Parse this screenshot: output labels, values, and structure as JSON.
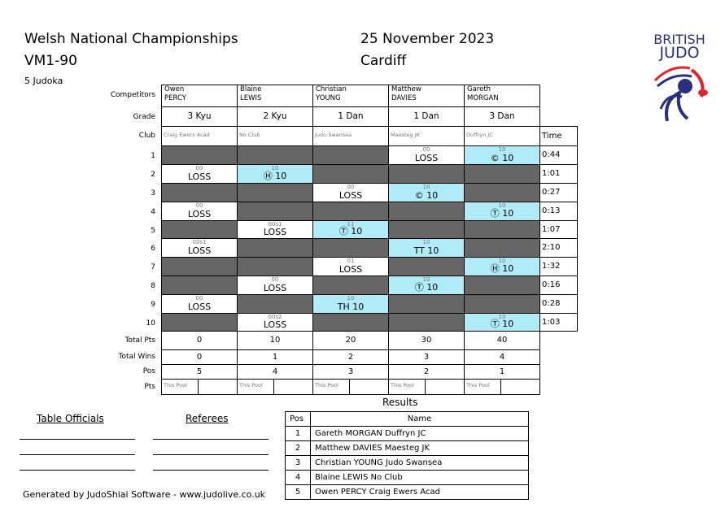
{
  "header": {
    "title": "Welsh National Championships",
    "category": "VM1-90",
    "count": "5 Judoka",
    "date": "25 November 2023",
    "location": "Cardiff",
    "logo_text": [
      "BRITISH",
      "JUDO"
    ]
  },
  "labels": {
    "competitors": "Competitors",
    "grade": "Grade",
    "club": "Club",
    "time": "Time",
    "total_pts": "Total Pts",
    "total_wins": "Total Wins",
    "pos": "Pos",
    "pts": "Pts",
    "this_pool": "This Pool"
  },
  "competitors": [
    {
      "first": "Owen",
      "last": "PERCY",
      "grade": "3 Kyu",
      "club": "Craig Ewers Acad",
      "total_pts": "0",
      "total_wins": "0",
      "pos": "5"
    },
    {
      "first": "Blaine",
      "last": "LEWIS",
      "grade": "2 Kyu",
      "club": "No Club",
      "total_pts": "10",
      "total_wins": "1",
      "pos": "4"
    },
    {
      "first": "Christian",
      "last": "YOUNG",
      "grade": "1 Dan",
      "club": "Judo Swansea",
      "total_pts": "20",
      "total_wins": "2",
      "pos": "3"
    },
    {
      "first": "Matthew",
      "last": "DAVIES",
      "grade": "1 Dan",
      "club": "Maesteg JK",
      "total_pts": "30",
      "total_wins": "3",
      "pos": "2"
    },
    {
      "first": "Gareth",
      "last": "MORGAN",
      "grade": "3 Dan",
      "club": "Duffryn JC",
      "total_pts": "40",
      "total_wins": "4",
      "pos": "1"
    }
  ],
  "bouts": [
    {
      "num": "1",
      "loser": 3,
      "loser_score": "00",
      "loser_text": "LOSS",
      "winner": 4,
      "winner_score": "10",
      "winner_text": "© 10",
      "time": "0:44"
    },
    {
      "num": "2",
      "loser": 0,
      "loser_score": "00",
      "loser_text": "LOSS",
      "winner": 1,
      "winner_score": "10",
      "winner_text": "Ⓗ 10",
      "time": "1:01"
    },
    {
      "num": "3",
      "loser": 2,
      "loser_score": "00",
      "loser_text": "LOSS",
      "winner": 3,
      "winner_score": "10",
      "winner_text": "© 10",
      "time": "0:27"
    },
    {
      "num": "4",
      "loser": 0,
      "loser_score": "00",
      "loser_text": "LOSS",
      "winner": 4,
      "winner_score": "10",
      "winner_text": "Ⓣ 10",
      "time": "0:13"
    },
    {
      "num": "5",
      "loser": 1,
      "loser_score": "00s1",
      "loser_text": "LOSS",
      "winner": 2,
      "winner_score": "11",
      "winner_text": "Ⓣ 10",
      "time": "1:07"
    },
    {
      "num": "6",
      "loser": 0,
      "loser_score": "00s1",
      "loser_text": "LOSS",
      "winner": 3,
      "winner_score": "10",
      "winner_text": "TT 10",
      "time": "2:10"
    },
    {
      "num": "7",
      "loser": 2,
      "loser_score": "01",
      "loser_text": "LOSS",
      "winner": 4,
      "winner_score": "10",
      "winner_text": "Ⓗ 10",
      "time": "1:32"
    },
    {
      "num": "8",
      "loser": 1,
      "loser_score": "00",
      "loser_text": "LOSS",
      "winner": 3,
      "winner_score": "10",
      "winner_text": "Ⓣ 10",
      "time": "0:16"
    },
    {
      "num": "9",
      "loser": 0,
      "loser_score": "00",
      "loser_text": "LOSS",
      "winner": 2,
      "winner_score": "10",
      "winner_text": "TH 10",
      "time": "0:28"
    },
    {
      "num": "10",
      "loser": 1,
      "loser_score": "00s2",
      "loser_text": "LOSS",
      "winner": 4,
      "winner_score": "10",
      "winner_text": "Ⓣ 10",
      "time": "1:03"
    }
  ],
  "results": {
    "title": "Results",
    "col_pos": "Pos",
    "col_name": "Name",
    "rows": [
      {
        "pos": "1",
        "name": "Gareth MORGAN Duffryn JC"
      },
      {
        "pos": "2",
        "name": "Matthew DAVIES Maesteg JK"
      },
      {
        "pos": "3",
        "name": "Christian YOUNG Judo Swansea"
      },
      {
        "pos": "4",
        "name": "Blaine LEWIS No Club"
      },
      {
        "pos": "5",
        "name": "Owen PERCY Craig Ewers Acad"
      }
    ]
  },
  "officials": {
    "table": "Table Officials",
    "referees": "Referees"
  },
  "footer": "Generated by JudoShiai Software - www.judolive.co.uk",
  "colors": {
    "win": "#b0ecf8",
    "empty": "#666666",
    "logo_blue": "#2b2f7f",
    "logo_red": "#e0242c"
  }
}
